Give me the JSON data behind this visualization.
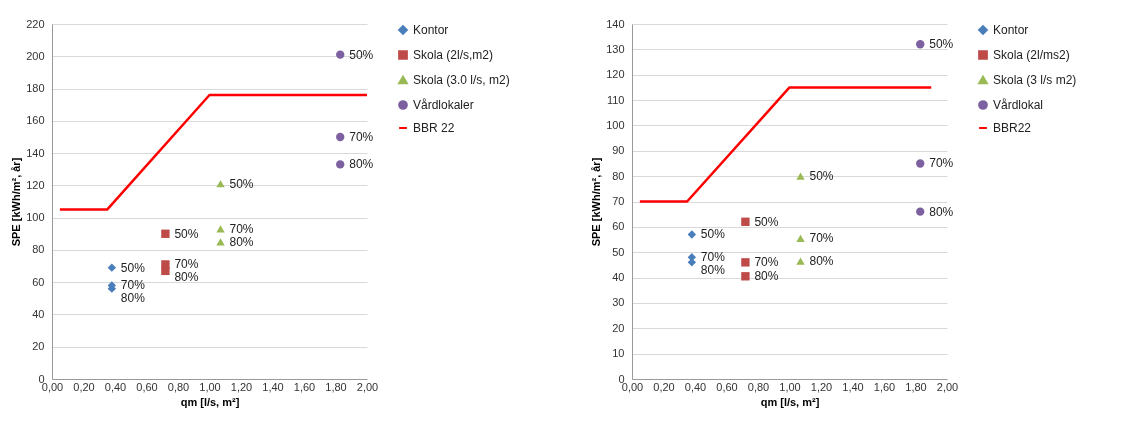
{
  "chart_data": [
    {
      "type": "scatter",
      "xlabel": "qm [l/s, m²]",
      "ylabel": "SPE [kWh/m², år]",
      "xlim": [
        0,
        2
      ],
      "ylim": [
        0,
        220
      ],
      "xticks": [
        {
          "value": 0,
          "label": "0,00"
        },
        {
          "value": 0.2,
          "label": "0,20"
        },
        {
          "value": 0.4,
          "label": "0,40"
        },
        {
          "value": 0.6,
          "label": "0,60"
        },
        {
          "value": 0.8,
          "label": "0,80"
        },
        {
          "value": 1,
          "label": "1,00"
        },
        {
          "value": 1.2,
          "label": "1,20"
        },
        {
          "value": 1.4,
          "label": "1,40"
        },
        {
          "value": 1.6,
          "label": "1,60"
        },
        {
          "value": 1.8,
          "label": "1,80"
        },
        {
          "value": 2,
          "label": "2,00"
        }
      ],
      "yticks": [
        0,
        20,
        40,
        60,
        80,
        100,
        120,
        140,
        160,
        180,
        200,
        220
      ],
      "grid": "y",
      "legend": "right",
      "series": [
        {
          "name": "Kontor",
          "color": "#4a7ebb",
          "marker": "diamond",
          "x": [
            0.38,
            0.38,
            0.38
          ],
          "values": [
            69,
            58,
            56
          ]
        },
        {
          "name": "Skola (2l/s,m2)",
          "color": "#be4b48",
          "marker": "square",
          "x": [
            0.72,
            0.72,
            0.72
          ],
          "values": [
            90,
            71,
            67
          ]
        },
        {
          "name": "Skola (3.0 l/s, m2)",
          "color": "#98b954",
          "marker": "triangle",
          "x": [
            1.07,
            1.07,
            1.07
          ],
          "values": [
            121,
            93,
            85
          ]
        },
        {
          "name": "Vårdlokaler",
          "color": "#7d60a0",
          "marker": "circle",
          "x": [
            1.83,
            1.83,
            1.83
          ],
          "values": [
            201,
            150,
            133
          ]
        },
        {
          "name": "BBR 22",
          "color": "#ff0000",
          "type": "line",
          "marker": "none",
          "line_style": "solid",
          "x": [
            0.05,
            0.35,
            1.0,
            2.0
          ],
          "values": [
            105,
            105,
            176,
            176
          ]
        }
      ],
      "annotations": [
        {
          "text": "50%",
          "x": 0.38,
          "y": 69
        },
        {
          "text": "70%",
          "x": 0.38,
          "y": 58
        },
        {
          "text": "80%",
          "x": 0.38,
          "y": 56
        },
        {
          "text": "50%",
          "x": 0.72,
          "y": 90
        },
        {
          "text": "70%",
          "x": 0.72,
          "y": 71
        },
        {
          "text": "80%",
          "x": 0.72,
          "y": 67
        },
        {
          "text": "50%",
          "x": 1.07,
          "y": 121
        },
        {
          "text": "70%",
          "x": 1.07,
          "y": 93
        },
        {
          "text": "80%",
          "x": 1.07,
          "y": 85
        },
        {
          "text": "50%",
          "x": 1.83,
          "y": 201
        },
        {
          "text": "70%",
          "x": 1.83,
          "y": 150
        },
        {
          "text": "80%",
          "x": 1.83,
          "y": 133
        }
      ]
    },
    {
      "type": "scatter",
      "xlabel": "qm [l/s, m²]",
      "ylabel": "SPE [kWh/m², år]",
      "xlim": [
        0,
        2
      ],
      "ylim": [
        0,
        140
      ],
      "xticks": [
        {
          "value": 0,
          "label": "0,00"
        },
        {
          "value": 0.2,
          "label": "0,20"
        },
        {
          "value": 0.4,
          "label": "0,40"
        },
        {
          "value": 0.6,
          "label": "0,60"
        },
        {
          "value": 0.8,
          "label": "0,80"
        },
        {
          "value": 1,
          "label": "1,00"
        },
        {
          "value": 1.2,
          "label": "1,20"
        },
        {
          "value": 1.4,
          "label": "1,40"
        },
        {
          "value": 1.6,
          "label": "1,60"
        },
        {
          "value": 1.8,
          "label": "1,80"
        },
        {
          "value": 2,
          "label": "2,00"
        }
      ],
      "yticks": [
        0,
        10,
        20,
        30,
        40,
        50,
        60,
        70,
        80,
        90,
        100,
        110,
        120,
        130,
        140
      ],
      "grid": "y",
      "legend": "right",
      "series": [
        {
          "name": "Kontor",
          "color": "#4a7ebb",
          "marker": "diamond",
          "x": [
            0.38,
            0.38,
            0.38
          ],
          "values": [
            57,
            48,
            46
          ]
        },
        {
          "name": "Skola (2l/ms2)",
          "color": "#be4b48",
          "marker": "square",
          "x": [
            0.72,
            0.72,
            0.72
          ],
          "values": [
            62,
            46,
            40.5
          ]
        },
        {
          "name": "Skola (3 l/s m2)",
          "color": "#98b954",
          "marker": "triangle",
          "x": [
            1.07,
            1.07,
            1.07
          ],
          "values": [
            80,
            55.5,
            46.5
          ]
        },
        {
          "name": "Vårdlokal",
          "color": "#7d60a0",
          "marker": "circle",
          "x": [
            1.83,
            1.83,
            1.83
          ],
          "values": [
            132,
            85,
            66
          ]
        },
        {
          "name": "BBR22",
          "color": "#ff0000",
          "type": "line",
          "marker": "none",
          "line_style": "solid",
          "x": [
            0.05,
            0.35,
            1.0,
            1.9
          ],
          "values": [
            70,
            70,
            115,
            115
          ]
        }
      ],
      "annotations": [
        {
          "text": "50%",
          "x": 0.38,
          "y": 57
        },
        {
          "text": "70%",
          "x": 0.38,
          "y": 48
        },
        {
          "text": "80%",
          "x": 0.38,
          "y": 46
        },
        {
          "text": "50%",
          "x": 0.72,
          "y": 62
        },
        {
          "text": "70%",
          "x": 0.72,
          "y": 46
        },
        {
          "text": "80%",
          "x": 0.72,
          "y": 40.5
        },
        {
          "text": "50%",
          "x": 1.07,
          "y": 80
        },
        {
          "text": "70%",
          "x": 1.07,
          "y": 55.5
        },
        {
          "text": "80%",
          "x": 1.07,
          "y": 46.5
        },
        {
          "text": "50%",
          "x": 1.83,
          "y": 132
        },
        {
          "text": "70%",
          "x": 1.83,
          "y": 85
        },
        {
          "text": "80%",
          "x": 1.83,
          "y": 66
        }
      ]
    }
  ]
}
